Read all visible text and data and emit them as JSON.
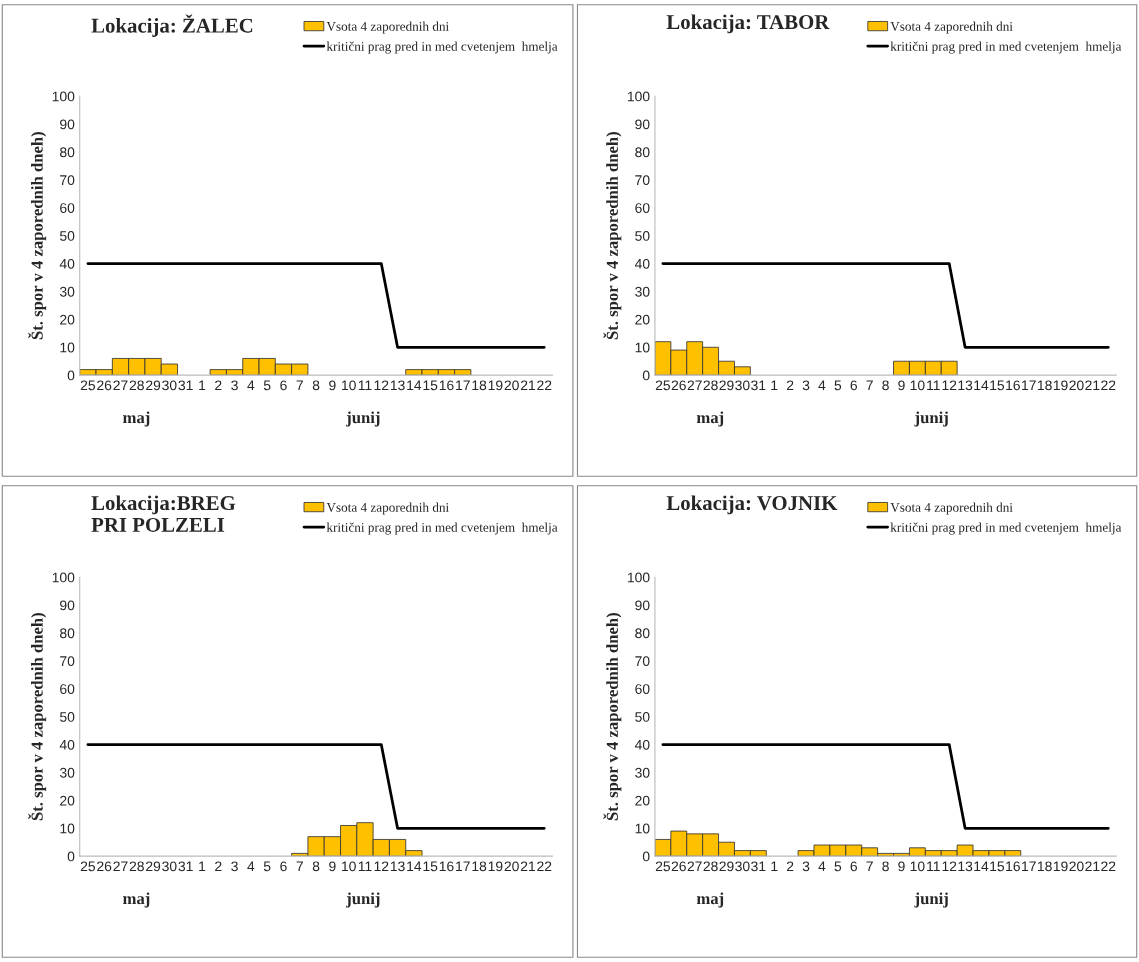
{
  "chart_data": [
    {
      "type": "bar",
      "title": "Lokacija: ŽALEC",
      "ylabel": "Št. spor v 4 zaporednih dneh)",
      "categories": [
        "25",
        "26",
        "27",
        "28",
        "29",
        "30",
        "31",
        "1",
        "2",
        "3",
        "4",
        "5",
        "6",
        "7",
        "8",
        "9",
        "10",
        "11",
        "12",
        "13",
        "14",
        "15",
        "16",
        "17",
        "18",
        "19",
        "20",
        "21",
        "22"
      ],
      "series": [
        {
          "name": "Vsota 4 zaporednih dni",
          "color": "#ffc000",
          "values": [
            2,
            2,
            6,
            6,
            6,
            4,
            null,
            null,
            2,
            2,
            6,
            6,
            4,
            4,
            null,
            null,
            null,
            null,
            null,
            null,
            2,
            2,
            2,
            2,
            null,
            null,
            null,
            null,
            null
          ]
        },
        {
          "name": "kritični prag pred in med cvetenjem  hmelja",
          "type": "line",
          "color": "#000000",
          "values": [
            40,
            40,
            40,
            40,
            40,
            40,
            40,
            40,
            40,
            40,
            40,
            40,
            40,
            40,
            40,
            40,
            40,
            40,
            40,
            10,
            10,
            10,
            10,
            10,
            10,
            10,
            10,
            10,
            10
          ]
        }
      ],
      "ylim": [
        0,
        100
      ],
      "yticks": [
        0,
        10,
        20,
        30,
        40,
        50,
        60,
        70,
        80,
        90,
        100
      ],
      "grid": false,
      "legend": "top right",
      "annotations": [
        "maj",
        "junij"
      ]
    },
    {
      "type": "bar",
      "title": "Lokacija: TABOR",
      "ylabel": "Št. spor v 4 zaporednih dneh)",
      "categories": [
        "25",
        "26",
        "27",
        "28",
        "29",
        "30",
        "31",
        "1",
        "2",
        "3",
        "4",
        "5",
        "6",
        "7",
        "8",
        "9",
        "10",
        "11",
        "12",
        "13",
        "14",
        "15",
        "16",
        "17",
        "18",
        "19",
        "20",
        "21",
        "22"
      ],
      "series": [
        {
          "name": "Vsota 4 zaporednih dni",
          "color": "#ffc000",
          "values": [
            12,
            9,
            12,
            10,
            5,
            3,
            null,
            null,
            null,
            null,
            null,
            null,
            null,
            null,
            null,
            5,
            5,
            5,
            5,
            null,
            null,
            null,
            null,
            null,
            null,
            null,
            null,
            null,
            null
          ]
        },
        {
          "name": "kritični prag pred in med cvetenjem  hmelja",
          "type": "line",
          "color": "#000000",
          "values": [
            40,
            40,
            40,
            40,
            40,
            40,
            40,
            40,
            40,
            40,
            40,
            40,
            40,
            40,
            40,
            40,
            40,
            40,
            40,
            10,
            10,
            10,
            10,
            10,
            10,
            10,
            10,
            10,
            10
          ]
        }
      ],
      "ylim": [
        0,
        100
      ],
      "yticks": [
        0,
        10,
        20,
        30,
        40,
        50,
        60,
        70,
        80,
        90,
        100
      ],
      "grid": false,
      "legend": "top right",
      "annotations": [
        "maj",
        "junij"
      ]
    },
    {
      "type": "bar",
      "title": "Lokacija:BREG\nPRI POLZELI",
      "ylabel": "Št. spor v 4 zaporednih dneh)",
      "categories": [
        "25",
        "26",
        "27",
        "28",
        "29",
        "30",
        "31",
        "1",
        "2",
        "3",
        "4",
        "5",
        "6",
        "7",
        "8",
        "9",
        "10",
        "11",
        "12",
        "13",
        "14",
        "15",
        "16",
        "17",
        "18",
        "19",
        "20",
        "21",
        "22"
      ],
      "series": [
        {
          "name": "Vsota 4 zaporednih dni",
          "color": "#ffc000",
          "values": [
            null,
            null,
            null,
            null,
            null,
            null,
            null,
            null,
            null,
            null,
            null,
            null,
            null,
            1,
            7,
            7,
            11,
            12,
            6,
            6,
            2,
            null,
            null,
            null,
            null,
            null,
            null,
            null,
            null
          ]
        },
        {
          "name": "kritični prag pred in med cvetenjem  hmelja",
          "type": "line",
          "color": "#000000",
          "values": [
            40,
            40,
            40,
            40,
            40,
            40,
            40,
            40,
            40,
            40,
            40,
            40,
            40,
            40,
            40,
            40,
            40,
            40,
            40,
            10,
            10,
            10,
            10,
            10,
            10,
            10,
            10,
            10,
            10
          ]
        }
      ],
      "ylim": [
        0,
        100
      ],
      "yticks": [
        0,
        10,
        20,
        30,
        40,
        50,
        60,
        70,
        80,
        90,
        100
      ],
      "grid": false,
      "legend": "top right",
      "annotations": [
        "maj",
        "junij"
      ]
    },
    {
      "type": "bar",
      "title": "Lokacija: VOJNIK",
      "ylabel": "Št. spor v 4 zaporednih dneh)",
      "categories": [
        "25",
        "26",
        "27",
        "28",
        "29",
        "30",
        "31",
        "1",
        "2",
        "3",
        "4",
        "5",
        "6",
        "7",
        "8",
        "9",
        "10",
        "11",
        "12",
        "13",
        "14",
        "15",
        "16",
        "17",
        "18",
        "19",
        "20",
        "21",
        "22"
      ],
      "series": [
        {
          "name": "Vsota 4 zaporednih dni",
          "color": "#ffc000",
          "values": [
            6,
            9,
            8,
            8,
            5,
            2,
            2,
            null,
            null,
            2,
            4,
            4,
            4,
            3,
            1,
            1,
            3,
            2,
            2,
            4,
            2,
            2,
            2,
            null,
            null,
            null,
            null,
            null,
            null
          ]
        },
        {
          "name": "kritični prag pred in med cvetenjem  hmelja",
          "type": "line",
          "color": "#000000",
          "values": [
            40,
            40,
            40,
            40,
            40,
            40,
            40,
            40,
            40,
            40,
            40,
            40,
            40,
            40,
            40,
            40,
            40,
            40,
            40,
            10,
            10,
            10,
            10,
            10,
            10,
            10,
            10,
            10,
            10
          ]
        }
      ],
      "ylim": [
        0,
        100
      ],
      "yticks": [
        0,
        10,
        20,
        30,
        40,
        50,
        60,
        70,
        80,
        90,
        100
      ],
      "grid": false,
      "legend": "top right",
      "annotations": [
        "maj",
        "junij"
      ]
    }
  ]
}
